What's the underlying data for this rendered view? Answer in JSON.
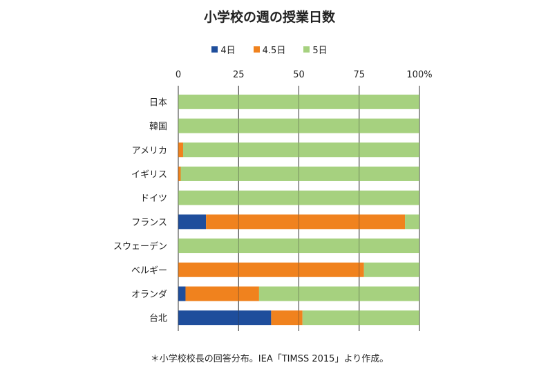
{
  "chart_data": {
    "type": "bar",
    "orientation": "horizontal",
    "stacked": true,
    "title": "小学校の週の授業日数",
    "categories": [
      "日本",
      "韓国",
      "アメリカ",
      "イギリス",
      "ドイツ",
      "フランス",
      "スウェーデン",
      "ベルギー",
      "オランダ",
      "台北"
    ],
    "series": [
      {
        "name": "4日",
        "color": "#1f4e9c",
        "values": [
          0,
          0,
          0,
          0,
          0,
          11.5,
          0,
          0,
          3,
          38.5
        ]
      },
      {
        "name": "4.5日",
        "color": "#f0821e",
        "values": [
          0,
          0,
          2,
          1,
          0,
          82.5,
          0,
          77,
          30.5,
          13
        ]
      },
      {
        "name": "5日",
        "color": "#a6d17f",
        "values": [
          100,
          100,
          98,
          99,
          100,
          6,
          100,
          23,
          66.5,
          48.5
        ]
      }
    ],
    "xlim": [
      0,
      100
    ],
    "ticks": [
      "0",
      "25",
      "50",
      "75",
      "100%"
    ],
    "tick_values": [
      0,
      25,
      50,
      75,
      100
    ],
    "legend_position": "top",
    "grid": true
  },
  "note": "＊小学校校長の回答分布。IEA「TIMSS 2015」より作成。"
}
